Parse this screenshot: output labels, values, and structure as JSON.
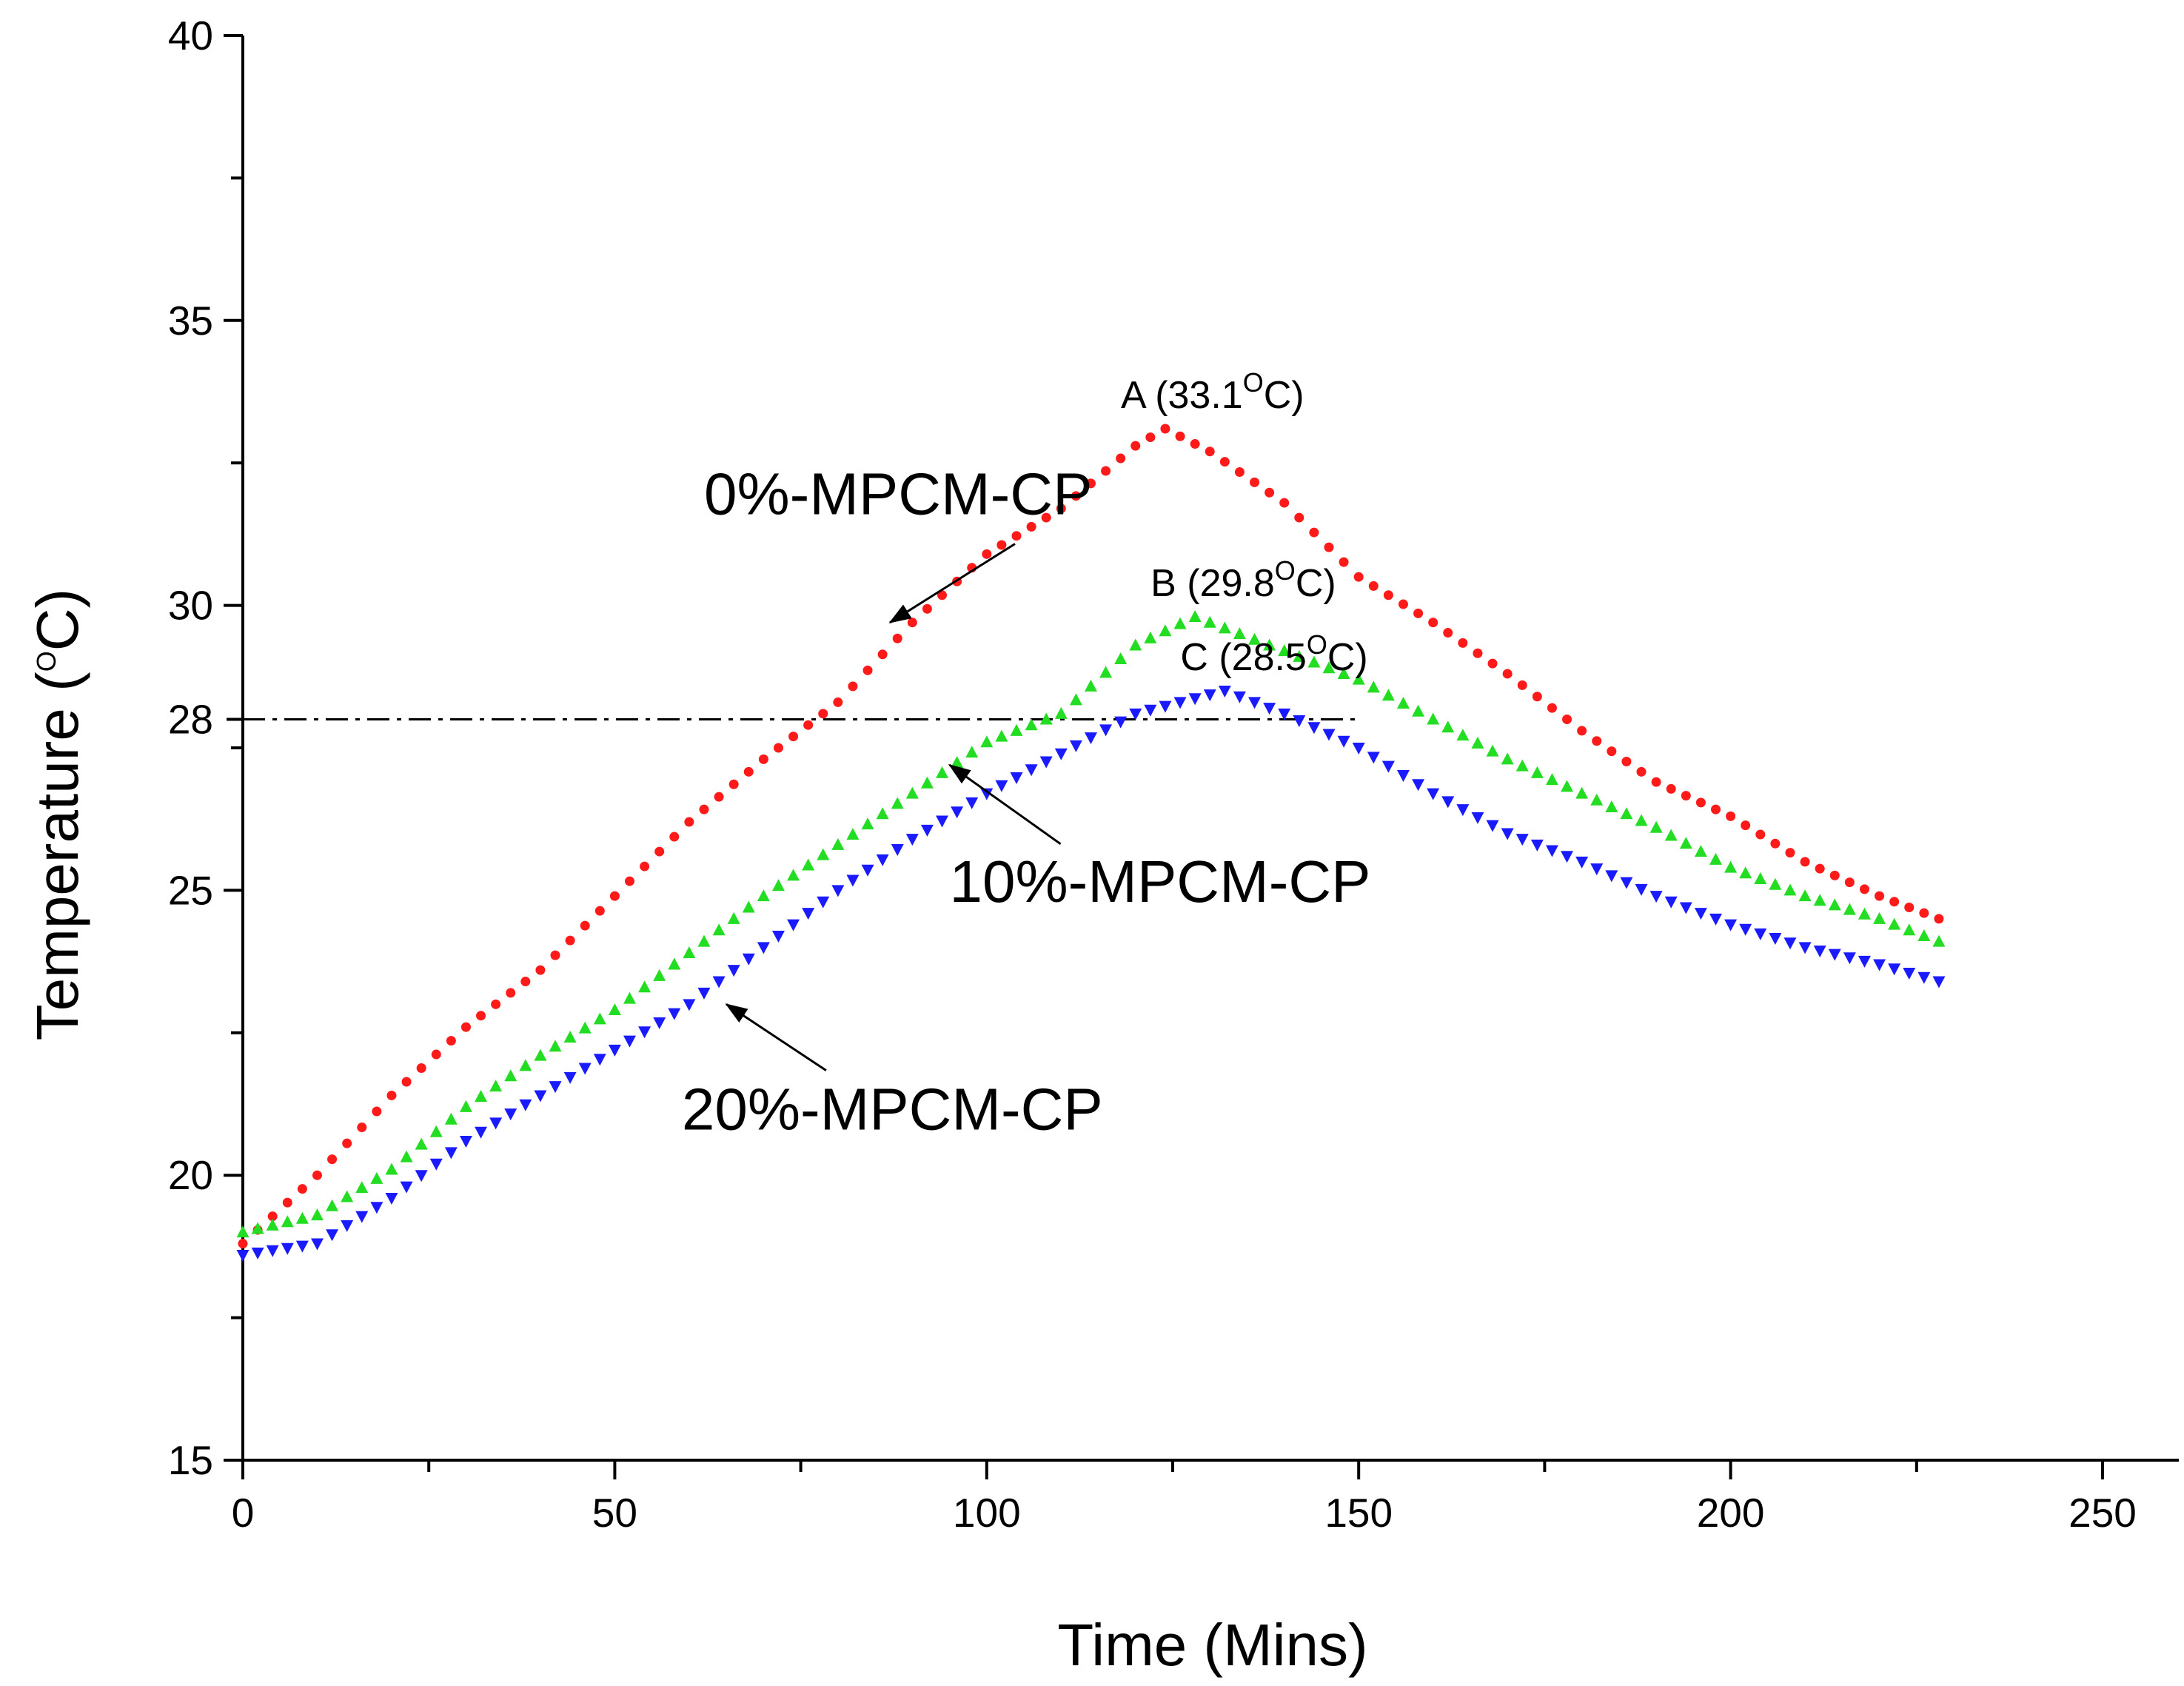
{
  "chart_data": {
    "type": "scatter",
    "title": "",
    "xlabel": "Time (Mins)",
    "ylabel_main": "Temperature (",
    "ylabel_sup": "O",
    "ylabel_end": "C)",
    "xlim": [
      0,
      260
    ],
    "ylim": [
      15,
      40
    ],
    "xticks": [
      0,
      50,
      100,
      150,
      200,
      250
    ],
    "yticks": [
      15,
      20,
      25,
      30,
      35,
      40
    ],
    "extra_ytick": {
      "value": 28,
      "label": "28"
    },
    "threshold": {
      "value": 28,
      "x_start": 0,
      "x_end": 150,
      "style": "dash-dot"
    },
    "series": [
      {
        "name": "0%-MPCM-CP",
        "label": "0%-MPCM-CP",
        "color": "#ff1a1a",
        "marker": "circle",
        "x": [
          0,
          10,
          20,
          30,
          40,
          50,
          60,
          70,
          80,
          90,
          100,
          110,
          120,
          124,
          130,
          140,
          150,
          160,
          170,
          180,
          190,
          200,
          210,
          220,
          228
        ],
        "y": [
          18.8,
          20.0,
          21.4,
          22.6,
          23.6,
          24.9,
          26.2,
          27.3,
          28.3,
          29.7,
          30.9,
          31.7,
          32.8,
          33.1,
          32.7,
          31.8,
          30.5,
          29.7,
          28.8,
          27.8,
          26.9,
          26.3,
          25.5,
          24.9,
          24.5
        ]
      },
      {
        "name": "10%-MPCM-CP",
        "label": "10%-MPCM-CP",
        "color": "#22dd22",
        "marker": "triangle-up",
        "x": [
          0,
          10,
          20,
          30,
          40,
          50,
          60,
          70,
          80,
          90,
          100,
          110,
          120,
          128,
          140,
          150,
          160,
          170,
          180,
          190,
          200,
          210,
          220,
          228
        ],
        "y": [
          19.0,
          19.3,
          20.1,
          21.2,
          22.1,
          22.9,
          23.9,
          24.9,
          25.8,
          26.7,
          27.6,
          28.1,
          29.3,
          29.8,
          29.2,
          28.7,
          28.0,
          27.3,
          26.7,
          26.1,
          25.4,
          24.9,
          24.5,
          24.1
        ]
      },
      {
        "name": "20%-MPCM-CP",
        "label": "20%-MPCM-CP",
        "color": "#1a1aff",
        "marker": "triangle-down",
        "x": [
          0,
          10,
          20,
          30,
          40,
          50,
          60,
          70,
          80,
          90,
          100,
          110,
          120,
          132,
          140,
          150,
          160,
          170,
          180,
          190,
          200,
          210,
          220,
          228
        ],
        "y": [
          18.6,
          18.8,
          19.6,
          20.6,
          21.4,
          22.2,
          23.0,
          24.0,
          25.0,
          25.9,
          26.7,
          27.4,
          28.1,
          28.5,
          28.1,
          27.5,
          26.7,
          26.0,
          25.5,
          24.9,
          24.4,
          24.0,
          23.7,
          23.4
        ]
      }
    ],
    "peak_annotations": [
      {
        "prefix": "A (33.1",
        "sup": "O",
        "suffix": "C)",
        "x": 124,
        "y": 33.1
      },
      {
        "prefix": "B (29.8",
        "sup": "O",
        "suffix": "C)",
        "x": 128,
        "y": 29.8
      },
      {
        "prefix": "C (28.5",
        "sup": "O",
        "suffix": "C)",
        "x": 132,
        "y": 28.5
      }
    ],
    "series_annotations": [
      {
        "series": 0,
        "text_x": 62,
        "text_y": 31.6,
        "arrow_to_x": 87,
        "arrow_to_y": 29.7
      },
      {
        "series": 1,
        "text_x": 95,
        "text_y": 24.8,
        "arrow_to_x": 95,
        "arrow_to_y": 27.2
      },
      {
        "series": 2,
        "text_x": 59,
        "text_y": 20.8,
        "arrow_to_x": 65,
        "arrow_to_y": 23.0
      }
    ]
  }
}
